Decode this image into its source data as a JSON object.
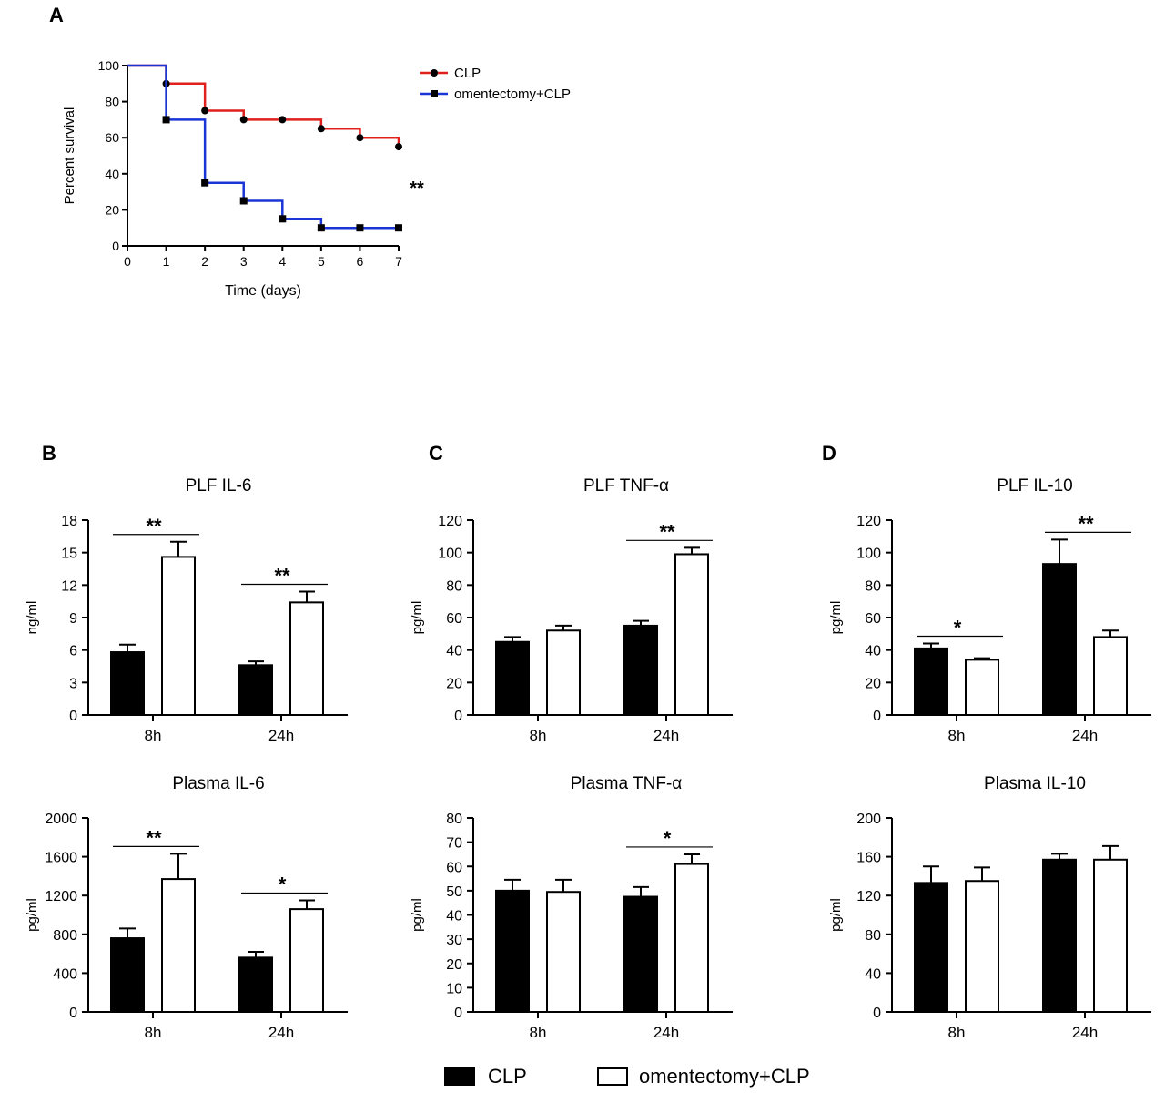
{
  "colors": {
    "clp_line": "#e0201c",
    "omen_line": "#1a35d6",
    "bar_clp": "#000000",
    "bar_omen": "#ffffff"
  },
  "legend_bottom": {
    "clp": "CLP",
    "omen": "omentectomy+CLP"
  },
  "chart_data": [
    {
      "panel": "A",
      "type": "line",
      "subtype": "survival-step",
      "title": "",
      "xlabel": "Time (days)",
      "ylabel": "Percent survival",
      "xlim": [
        0,
        7
      ],
      "ylim": [
        0,
        100
      ],
      "xticks": [
        0,
        1,
        2,
        3,
        4,
        5,
        6,
        7
      ],
      "yticks": [
        0,
        20,
        40,
        60,
        80,
        100
      ],
      "significance": "**",
      "series": [
        {
          "name": "CLP",
          "marker": "circle",
          "x": [
            0,
            1,
            2,
            3,
            4,
            5,
            6,
            7
          ],
          "y": [
            100,
            90,
            75,
            70,
            70,
            65,
            60,
            55
          ]
        },
        {
          "name": "omentectomy+CLP",
          "marker": "square",
          "x": [
            0,
            1,
            2,
            3,
            4,
            5,
            6,
            7
          ],
          "y": [
            100,
            70,
            35,
            25,
            15,
            10,
            10,
            10
          ]
        }
      ]
    },
    {
      "panel": "B",
      "type": "bar",
      "title": "PLF  IL-6",
      "ylabel": "ng/ml",
      "categories": [
        "8h",
        "24h"
      ],
      "ylim": [
        0,
        18
      ],
      "yticks": [
        0,
        3,
        6,
        9,
        12,
        15,
        18
      ],
      "series": [
        {
          "name": "CLP",
          "values": [
            5.8,
            4.6
          ],
          "errors": [
            0.7,
            0.35
          ]
        },
        {
          "name": "omentectomy+CLP",
          "values": [
            14.6,
            10.4
          ],
          "errors": [
            1.4,
            1.0
          ]
        }
      ],
      "significance": [
        "**",
        "**"
      ]
    },
    {
      "panel": "C",
      "type": "bar",
      "title": "PLF  TNF-α",
      "ylabel": "pg/ml",
      "categories": [
        "8h",
        "24h"
      ],
      "ylim": [
        0,
        120
      ],
      "yticks": [
        0,
        20,
        40,
        60,
        80,
        100,
        120
      ],
      "series": [
        {
          "name": "CLP",
          "values": [
            45,
            55
          ],
          "errors": [
            3,
            3
          ]
        },
        {
          "name": "omentectomy+CLP",
          "values": [
            52,
            99
          ],
          "errors": [
            3,
            4
          ]
        }
      ],
      "significance": [
        "",
        "**"
      ]
    },
    {
      "panel": "D",
      "type": "bar",
      "title": "PLF  IL-10",
      "ylabel": "pg/ml",
      "categories": [
        "8h",
        "24h"
      ],
      "ylim": [
        0,
        120
      ],
      "yticks": [
        0,
        20,
        40,
        60,
        80,
        100,
        120
      ],
      "series": [
        {
          "name": "CLP",
          "values": [
            41,
            93
          ],
          "errors": [
            3,
            15
          ]
        },
        {
          "name": "omentectomy+CLP",
          "values": [
            34,
            48
          ],
          "errors": [
            1,
            4
          ]
        }
      ],
      "significance": [
        "*",
        "**"
      ]
    },
    {
      "panel": "",
      "type": "bar",
      "title": "Plasma IL-6",
      "ylabel": "pg/ml",
      "categories": [
        "8h",
        "24h"
      ],
      "ylim": [
        0,
        2000
      ],
      "yticks": [
        0,
        400,
        800,
        1200,
        1600,
        2000
      ],
      "series": [
        {
          "name": "CLP",
          "values": [
            760,
            560
          ],
          "errors": [
            100,
            60
          ]
        },
        {
          "name": "omentectomy+CLP",
          "values": [
            1370,
            1060
          ],
          "errors": [
            260,
            90
          ]
        }
      ],
      "significance": [
        "**",
        "*"
      ]
    },
    {
      "panel": "",
      "type": "bar",
      "title": "Plasma TNF-α",
      "ylabel": "pg/ml",
      "categories": [
        "8h",
        "24h"
      ],
      "ylim": [
        0,
        80
      ],
      "yticks": [
        0,
        10,
        20,
        30,
        40,
        50,
        60,
        70,
        80
      ],
      "series": [
        {
          "name": "CLP",
          "values": [
            50,
            47.5
          ],
          "errors": [
            4.5,
            4
          ]
        },
        {
          "name": "omentectomy+CLP",
          "values": [
            49.5,
            61
          ],
          "errors": [
            5,
            4
          ]
        }
      ],
      "significance": [
        "",
        "*"
      ]
    },
    {
      "panel": "",
      "type": "bar",
      "title": "Plasma  IL-10",
      "ylabel": "pg/ml",
      "categories": [
        "8h",
        "24h"
      ],
      "ylim": [
        0,
        200
      ],
      "yticks": [
        0,
        40,
        80,
        120,
        160,
        200
      ],
      "series": [
        {
          "name": "CLP",
          "values": [
            133,
            157
          ],
          "errors": [
            17,
            6
          ]
        },
        {
          "name": "omentectomy+CLP",
          "values": [
            135,
            157
          ],
          "errors": [
            14,
            14
          ]
        }
      ],
      "significance": [
        "",
        ""
      ]
    }
  ]
}
